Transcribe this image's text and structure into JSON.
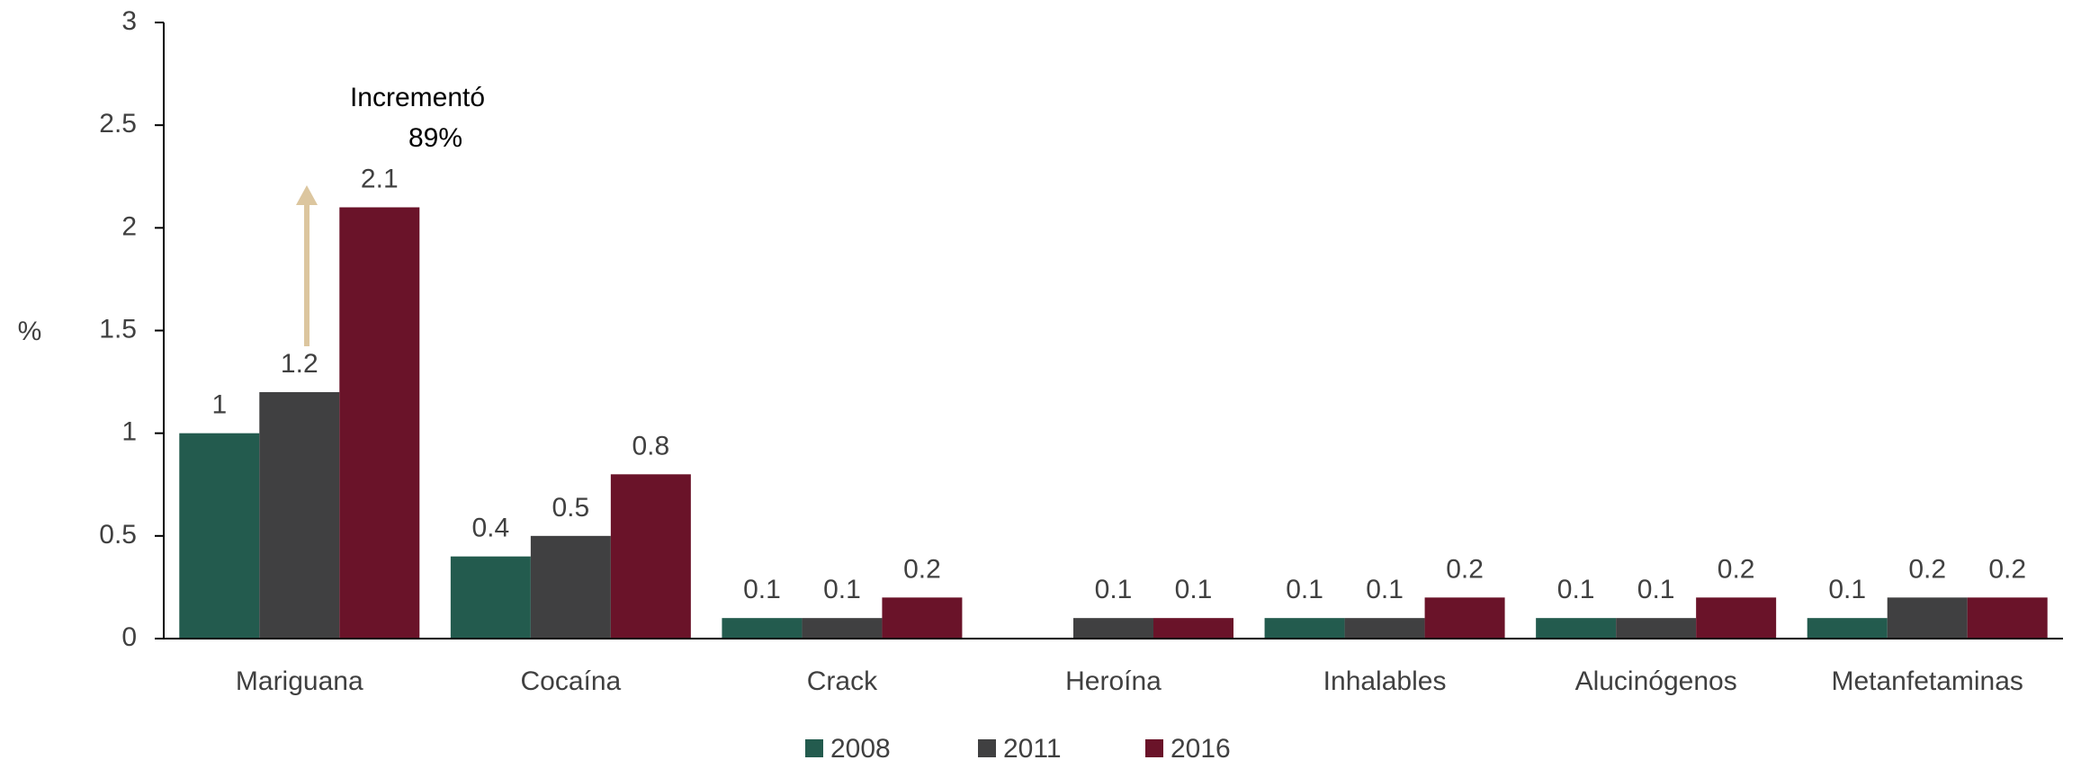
{
  "chart_data": {
    "type": "bar",
    "y_label": "%",
    "annotation": [
      "Incrementó",
      "89%"
    ],
    "categories": [
      "Mariguana",
      "Cocaína",
      "Crack",
      "Heroína",
      "Inhalables",
      "Alucinógenos",
      "Metanfetaminas"
    ],
    "series": [
      {
        "name": "2008",
        "color": "#235b4e",
        "values": [
          1,
          0.4,
          0.1,
          null,
          0.1,
          0.1,
          0.1
        ]
      },
      {
        "name": "2011",
        "color": "#404041",
        "values": [
          1.2,
          0.5,
          0.1,
          0.1,
          0.1,
          0.1,
          0.2
        ]
      },
      {
        "name": "2016",
        "color": "#6a1329",
        "values": [
          2.1,
          0.8,
          0.2,
          0.1,
          0.2,
          0.2,
          0.2
        ]
      }
    ],
    "ylim": [
      0,
      3
    ],
    "yticks": [
      0,
      0.5,
      1,
      1.5,
      2,
      2.5,
      3
    ],
    "grid": false,
    "legend": "bottom"
  }
}
